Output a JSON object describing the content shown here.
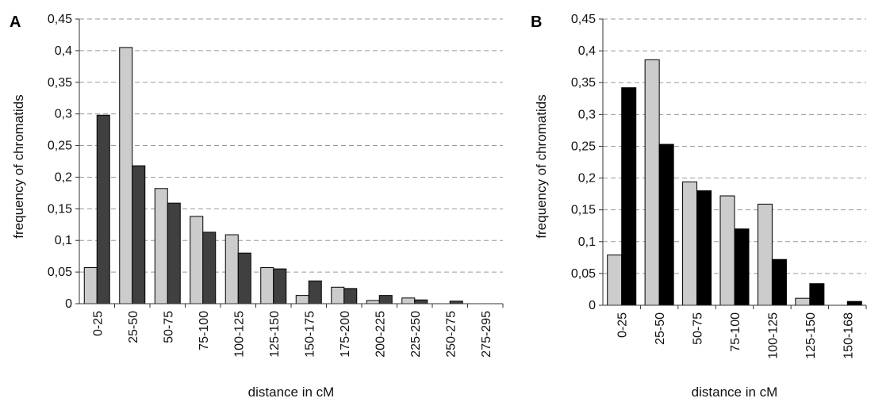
{
  "chart_data": [
    {
      "type": "bar",
      "panel_label": "A",
      "title": "",
      "xlabel": "distance in cM",
      "ylabel": "frequency of chromatids",
      "ylim": [
        0,
        0.45
      ],
      "y_ticks": [
        "0",
        "0,05",
        "0,1",
        "0,15",
        "0,2",
        "0,25",
        "0,3",
        "0,35",
        "0,4",
        "0,45"
      ],
      "grid": "dashed horizontal",
      "legend": "none",
      "categories": [
        "0-25",
        "25-50",
        "50-75",
        "75-100",
        "100-125",
        "125-150",
        "150-175",
        "175-200",
        "200-225",
        "225-250",
        "250-275",
        "275-295"
      ],
      "series": [
        {
          "color": "#cccccc",
          "values": [
            0.057,
            0.405,
            0.182,
            0.138,
            0.109,
            0.057,
            0.013,
            0.026,
            0.005,
            0.009,
            0.0,
            0.0
          ]
        },
        {
          "color": "#404040",
          "values": [
            0.298,
            0.218,
            0.159,
            0.113,
            0.08,
            0.055,
            0.036,
            0.024,
            0.013,
            0.006,
            0.004,
            0.0
          ]
        }
      ]
    },
    {
      "type": "bar",
      "panel_label": "B",
      "title": "",
      "xlabel": "distance in cM",
      "ylabel": "frequency of chromatids",
      "ylim": [
        0,
        0.45
      ],
      "y_ticks": [
        "0",
        "0,05",
        "0,1",
        "0,15",
        "0,2",
        "0,25",
        "0,3",
        "0,35",
        "0,4",
        "0,45"
      ],
      "grid": "dashed horizontal",
      "legend": "none",
      "categories": [
        "0-25",
        "25-50",
        "50-75",
        "75-100",
        "100-125",
        "125-150",
        "150-168"
      ],
      "series": [
        {
          "color": "#cccccc",
          "values": [
            0.079,
            0.386,
            0.194,
            0.172,
            0.159,
            0.011,
            0.0
          ]
        },
        {
          "color": "#000000",
          "values": [
            0.342,
            0.253,
            0.18,
            0.12,
            0.072,
            0.034,
            0.006
          ]
        }
      ]
    }
  ]
}
